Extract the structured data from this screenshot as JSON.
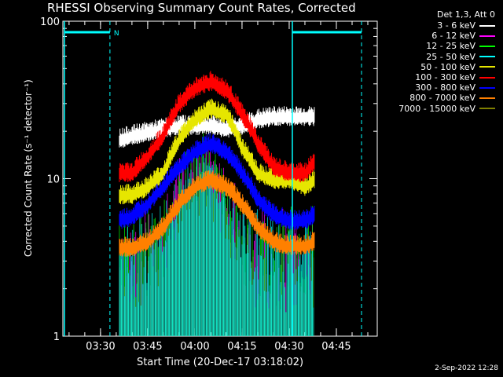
{
  "chart_data": {
    "type": "line",
    "title": "RHESSI Observing Summary Count Rates, Corrected",
    "xlabel": "Start Time (20-Dec-17 03:18:02)",
    "ylabel": "Corrected Count Rate (s⁻¹ detector⁻¹)",
    "y_scale": "log",
    "ylim": [
      1,
      100
    ],
    "y_ticks": [
      1,
      10,
      100
    ],
    "y_tick_labels": [
      "1",
      "10",
      "100"
    ],
    "x_ticks": [
      "03:30",
      "03:45",
      "04:00",
      "04:15",
      "04:30",
      "04:45"
    ],
    "xlim": [
      "03:18:02",
      "04:58:00"
    ],
    "legend_title": "Det 1,3, Att 0",
    "legend_position": "outside-right",
    "series": [
      {
        "name": "3 - 6 keV",
        "color": "#ffffff",
        "x": [
          "03:36",
          "03:40",
          "03:45",
          "03:50",
          "03:55",
          "04:00",
          "04:05",
          "04:10",
          "04:15",
          "04:20",
          "04:25",
          "04:30",
          "04:35",
          "04:38"
        ],
        "values": [
          18,
          19,
          20,
          21,
          22,
          22,
          22,
          21,
          22,
          24,
          25,
          25,
          25,
          25
        ]
      },
      {
        "name": "6 - 12 keV",
        "color": "#ff00ff",
        "x": [],
        "values": []
      },
      {
        "name": "12 - 25 keV",
        "color": "#00ff00",
        "x": [],
        "values": []
      },
      {
        "name": "25 - 50 keV",
        "color": "#00ffff",
        "x": [],
        "values": []
      },
      {
        "name": "50 - 100 keV",
        "color": "#e6e600",
        "x": [
          "03:36",
          "03:40",
          "03:45",
          "03:50",
          "03:55",
          "04:00",
          "04:05",
          "04:10",
          "04:15",
          "04:20",
          "04:25",
          "04:30",
          "04:35",
          "04:38"
        ],
        "values": [
          8,
          8,
          9,
          11,
          18,
          24,
          28,
          26,
          16,
          11,
          10,
          10,
          9,
          10
        ]
      },
      {
        "name": "100 - 300 keV",
        "color": "#ff0000",
        "x": [
          "03:36",
          "03:40",
          "03:45",
          "03:50",
          "03:55",
          "04:00",
          "04:05",
          "04:10",
          "04:15",
          "04:20",
          "04:25",
          "04:30",
          "04:35",
          "04:38"
        ],
        "values": [
          11,
          11,
          14,
          19,
          30,
          38,
          42,
          37,
          26,
          17,
          12,
          11,
          11,
          13
        ]
      },
      {
        "name": "300 - 800 keV",
        "color": "#0000ff",
        "x": [
          "03:36",
          "03:40",
          "03:45",
          "03:50",
          "03:55",
          "04:00",
          "04:05",
          "04:10",
          "04:15",
          "04:20",
          "04:25",
          "04:30",
          "04:35",
          "04:38"
        ],
        "values": [
          5.5,
          5.8,
          7,
          9,
          12,
          15,
          17,
          15,
          11,
          7.5,
          6,
          5.5,
          5.5,
          6
        ]
      },
      {
        "name": "800 - 7000 keV",
        "color": "#ff8000",
        "x": [
          "03:36",
          "03:40",
          "03:45",
          "03:50",
          "03:55",
          "04:00",
          "04:05",
          "04:10",
          "04:15",
          "04:20",
          "04:25",
          "04:30",
          "04:35",
          "04:38"
        ],
        "values": [
          3.7,
          3.7,
          4,
          5,
          7,
          9,
          10,
          9,
          7,
          5,
          4,
          3.8,
          3.8,
          4
        ]
      },
      {
        "name": "7000 - 15000 keV",
        "color": "#808000",
        "x": [],
        "values": []
      }
    ],
    "annotations": [
      {
        "text": "N",
        "color": "#00ffff"
      }
    ]
  },
  "footer": {
    "stamp": "2-Sep-2022 12:28"
  }
}
